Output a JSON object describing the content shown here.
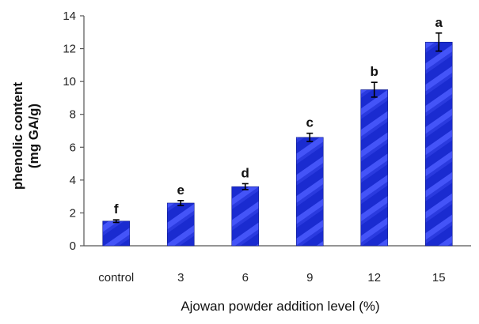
{
  "chart_data": {
    "type": "bar",
    "title": "",
    "categories": [
      "control",
      "3",
      "6",
      "9",
      "12",
      "15"
    ],
    "values": [
      1.5,
      2.6,
      3.6,
      6.6,
      9.5,
      12.4
    ],
    "errors": [
      0.08,
      0.15,
      0.18,
      0.25,
      0.45,
      0.55
    ],
    "significance_letters": [
      "f",
      "e",
      "d",
      "c",
      "b",
      "a"
    ],
    "xlabel": "Ajowan powder addition level  (%)",
    "ylabel_line1": "phenolic content",
    "ylabel_line2": "(mg GA/g)",
    "ylim": [
      0,
      14
    ],
    "yticks": [
      0,
      2,
      4,
      6,
      8,
      10,
      12,
      14
    ],
    "grid": false,
    "legend": "none",
    "bar_color": "#1a2bd0",
    "bar_stripe_color": "#5b6bff"
  }
}
